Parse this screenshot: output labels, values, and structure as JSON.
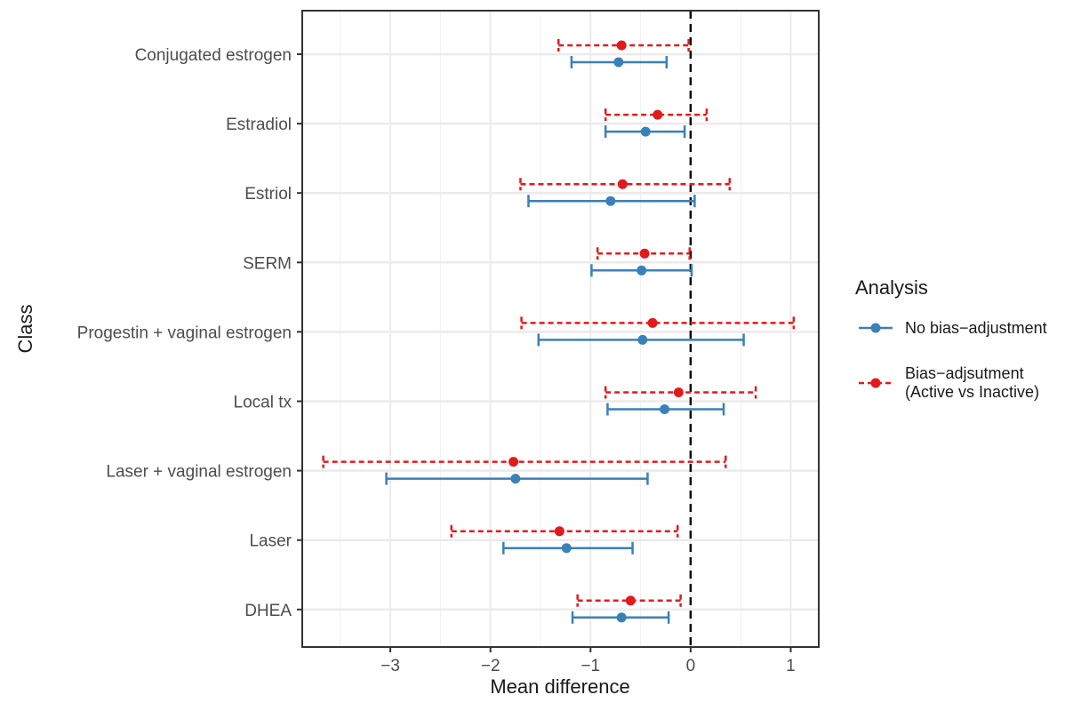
{
  "chart_data": {
    "type": "forest",
    "xlabel": "Mean difference",
    "ylabel": "Class",
    "xlim": [
      -3.88,
      1.28
    ],
    "xticks": [
      -3,
      -2,
      -1,
      0,
      1
    ],
    "xtick_labels": [
      "−3",
      "−2",
      "−1",
      "0",
      "1"
    ],
    "reference_line_x": 0,
    "grid": true,
    "categories": [
      "Conjugated estrogen",
      "Estradiol",
      "Estriol",
      "SERM",
      "Progestin + vaginal estrogen",
      "Local tx",
      "Laser + vaginal estrogen",
      "Laser",
      "DHEA"
    ],
    "series": [
      {
        "name": "No bias−adjustment",
        "color": "#3a80b9",
        "line_style": "solid",
        "estimate": [
          -0.72,
          -0.45,
          -0.8,
          -0.49,
          -0.48,
          -0.26,
          -1.75,
          -1.24,
          -0.69
        ],
        "lower": [
          -1.19,
          -0.85,
          -1.62,
          -0.99,
          -1.52,
          -0.83,
          -3.04,
          -1.87,
          -1.18
        ],
        "upper": [
          -0.24,
          -0.06,
          0.04,
          0.01,
          0.53,
          0.33,
          -0.43,
          -0.58,
          -0.22
        ]
      },
      {
        "name": "Bias−adjsutment\n(Active vs Inactive)",
        "color": "#e31a1c",
        "line_style": "dashed",
        "estimate": [
          -0.69,
          -0.33,
          -0.68,
          -0.46,
          -0.38,
          -0.12,
          -1.77,
          -1.31,
          -0.6
        ],
        "lower": [
          -1.32,
          -0.85,
          -1.7,
          -0.93,
          -1.69,
          -0.85,
          -3.67,
          -2.39,
          -1.13
        ],
        "upper": [
          -0.02,
          0.16,
          0.39,
          -0.01,
          1.03,
          0.65,
          0.35,
          -0.13,
          -0.1
        ]
      }
    ],
    "legend": {
      "title": "Analysis",
      "position": "right"
    }
  }
}
